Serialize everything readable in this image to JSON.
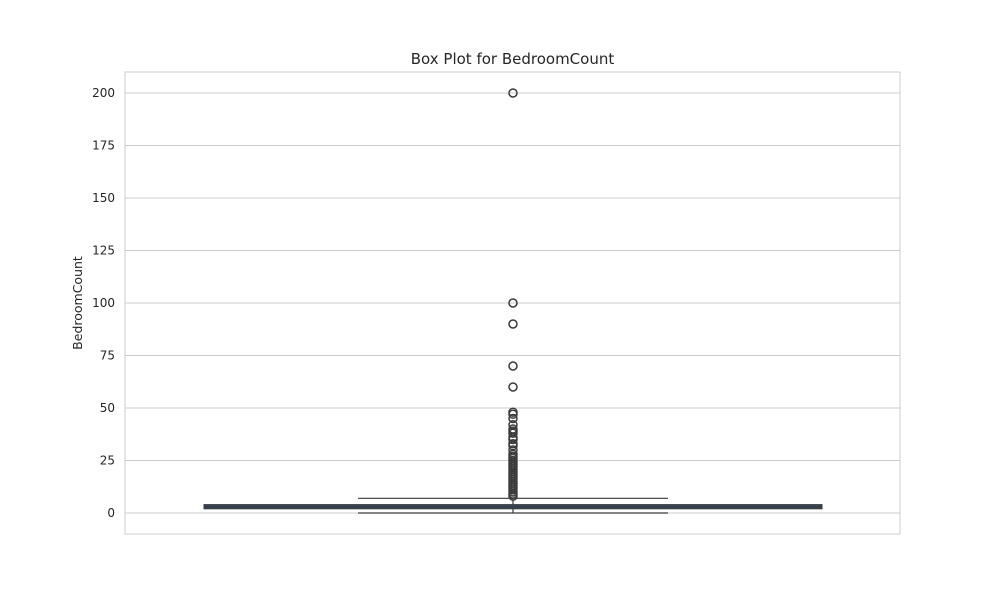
{
  "chart_data": {
    "type": "box",
    "title": "Box Plot for BedroomCount",
    "xlabel": "",
    "ylabel": "BedroomCount",
    "ylim": [
      -10,
      210
    ],
    "yticks": [
      0,
      25,
      50,
      75,
      100,
      125,
      150,
      175,
      200
    ],
    "grid": true,
    "box": {
      "whisker_low": 0,
      "q1": 2,
      "median": 3,
      "q3": 4,
      "whisker_high": 7
    },
    "outliers": [
      200,
      100,
      90,
      70,
      60,
      48,
      47,
      45,
      42,
      40,
      39,
      38,
      36,
      35,
      33,
      32,
      30,
      28,
      27,
      26,
      25,
      24,
      23,
      22,
      21,
      20,
      19,
      18,
      17,
      16,
      15,
      14,
      13,
      12,
      11,
      10,
      9,
      8
    ],
    "colors": {
      "box_fill": "#34495e",
      "line": "#3a3a3a",
      "grid": "#cccccc"
    }
  }
}
